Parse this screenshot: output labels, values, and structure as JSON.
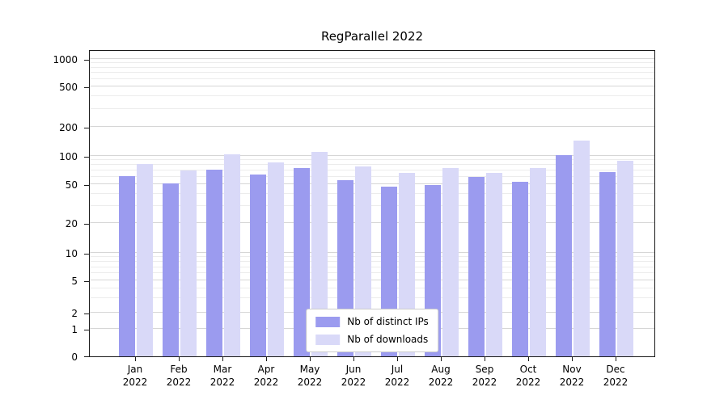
{
  "chart_data": {
    "type": "bar",
    "title": "RegParallel 2022",
    "categories": [
      "Jan",
      "Feb",
      "Mar",
      "Apr",
      "May",
      "Jun",
      "Jul",
      "Aug",
      "Sep",
      "Oct",
      "Nov",
      "Dec"
    ],
    "category_year": "2022",
    "series": [
      {
        "name": "Nb of distinct IPs",
        "color": "#9b9bef",
        "values": [
          61,
          51,
          72,
          63,
          75,
          55,
          47,
          49,
          60,
          53,
          102,
          68
        ]
      },
      {
        "name": "Nb of downloads",
        "color": "#d9d9f8",
        "values": [
          82,
          70,
          104,
          85,
          110,
          78,
          66,
          75,
          66,
          75,
          145,
          88
        ]
      }
    ],
    "yticks": [
      0,
      1,
      2,
      5,
      10,
      20,
      50,
      100,
      200,
      500,
      1000
    ],
    "yscale": "symlog",
    "ylim": [
      0,
      1200
    ],
    "xlabel": "",
    "ylabel": "",
    "grid": true,
    "legend_position": "lower center"
  }
}
